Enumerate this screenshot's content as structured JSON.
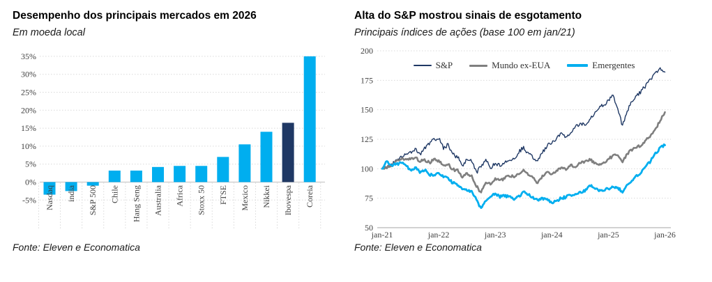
{
  "chart_data": [
    {
      "id": "markets-2026",
      "type": "bar",
      "title": "Desempenho dos principais mercados em 2026",
      "subtitle": "Em moeda local",
      "source": "Fonte: Eleven e Economatica",
      "categories": [
        "Nasdaq",
        "india",
        "S&P 500",
        "Chile",
        "Hang Seng",
        "Australia",
        "Africa",
        "Stoxx 50",
        "FTSE",
        "Mexico",
        "Nikkei",
        "Ibovespa",
        "Coreia"
      ],
      "values": [
        -3.5,
        -2.5,
        -1,
        3.2,
        3.2,
        4.2,
        4.5,
        4.5,
        7,
        10.5,
        14,
        16.5,
        35
      ],
      "value_unit": "%",
      "ylim": [
        -5,
        35
      ],
      "ytick_step": 5,
      "ytick_labels": [
        "35%",
        "30%",
        "25%",
        "20%",
        "15%",
        "10%",
        "5%",
        "0%",
        "-5%"
      ],
      "grid": "horizontal-dotted",
      "bar_color": "#00AEEF",
      "highlight": {
        "category": "Ibovespa",
        "color": "#1F3864"
      }
    },
    {
      "id": "sp-esgotamento",
      "type": "line",
      "title": "Alta do S&P mostrou sinais de esgotamento",
      "subtitle": "Principais índices de ações (base 100 em jan/21)",
      "source": "Fonte: Eleven e Economatica",
      "x_frequency": "monthly",
      "x_tick_labels": [
        "jan-21",
        "jan-22",
        "jan-23",
        "jan-24",
        "jan-25",
        "jan-26"
      ],
      "ylim": [
        50,
        200
      ],
      "ytick_step": 25,
      "ytick_labels": [
        "200",
        "175",
        "150",
        "125",
        "100",
        "75",
        "50"
      ],
      "grid": "horizontal-dotted",
      "legend_position": "top",
      "series": [
        {
          "name": "S&P",
          "color": "#1F3864",
          "values": [
            100,
            101,
            104,
            108,
            110,
            112,
            114,
            117,
            112,
            118,
            121,
            125,
            126,
            117,
            121,
            112,
            110,
            102,
            109,
            106,
            97,
            102,
            107,
            101,
            105,
            103,
            106,
            108,
            109,
            114,
            118,
            113,
            109,
            106,
            114,
            119,
            122,
            126,
            130,
            126,
            131,
            135,
            139,
            136,
            141,
            146,
            152,
            154,
            158,
            162,
            150,
            136,
            149,
            157,
            162,
            166,
            171,
            176,
            182,
            185,
            182
          ]
        },
        {
          "name": "Mundo ex-EUA",
          "color": "#7F7F7F",
          "values": [
            100,
            101,
            103,
            106,
            108,
            109,
            108,
            110,
            106,
            108,
            105,
            108,
            107,
            103,
            104,
            99,
            99,
            92,
            96,
            94,
            85,
            80,
            88,
            87,
            92,
            90,
            92,
            94,
            93,
            96,
            99,
            95,
            93,
            88,
            94,
            98,
            96,
            98,
            101,
            99,
            103,
            102,
            105,
            106,
            108,
            105,
            103,
            105,
            108,
            111,
            111,
            106,
            113,
            116,
            118,
            120,
            124,
            128,
            134,
            141,
            148
          ]
        },
        {
          "name": "Emergentes",
          "color": "#00AEEF",
          "values": [
            100,
            106,
            103,
            104,
            105,
            103,
            99,
            101,
            97,
            99,
            95,
            94,
            96,
            93,
            92,
            88,
            86,
            83,
            82,
            81,
            74,
            66,
            73,
            76,
            79,
            76,
            77,
            76,
            74,
            77,
            80,
            78,
            76,
            73,
            75,
            74,
            71,
            73,
            75,
            76,
            78,
            78,
            80,
            81,
            86,
            84,
            81,
            82,
            83,
            85,
            84,
            80,
            86,
            90,
            94,
            97,
            102,
            107,
            113,
            118,
            120
          ]
        }
      ]
    }
  ]
}
